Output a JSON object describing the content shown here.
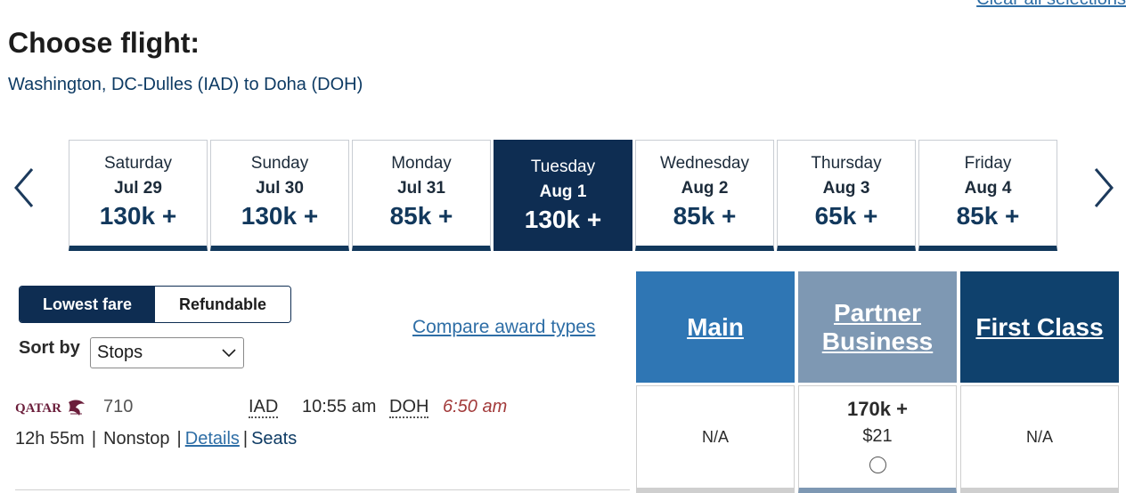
{
  "header": {
    "clear_all": "Clear all selections",
    "title": "Choose flight:",
    "route": "Washington, DC-Dulles (IAD) to Doha (DOH)"
  },
  "dates": [
    {
      "day": "Saturday",
      "date": "Jul 29",
      "price": "130k +"
    },
    {
      "day": "Sunday",
      "date": "Jul 30",
      "price": "130k +"
    },
    {
      "day": "Monday",
      "date": "Jul 31",
      "price": "85k +"
    },
    {
      "day": "Tuesday",
      "date": "Aug 1",
      "price": "130k +"
    },
    {
      "day": "Wednesday",
      "date": "Aug 2",
      "price": "85k +"
    },
    {
      "day": "Thursday",
      "date": "Aug 3",
      "price": "65k +"
    },
    {
      "day": "Friday",
      "date": "Aug 4",
      "price": "85k +"
    }
  ],
  "selected_date_index": 3,
  "fare_toggle": {
    "lowest": "Lowest fare",
    "refundable": "Refundable",
    "active": "lowest"
  },
  "sort": {
    "label": "Sort by",
    "value": "Stops"
  },
  "compare_link": "Compare award types",
  "cabins": {
    "main": {
      "line1": "Main",
      "line2": ""
    },
    "partner": {
      "line1": "Partner",
      "line2": "Business"
    },
    "first": {
      "line1": "First Class",
      "line2": ""
    }
  },
  "flight": {
    "airline": "QATAR",
    "number": "710",
    "dep_airport": "IAD",
    "dep_time": "10:55 am",
    "arr_airport": "DOH",
    "arr_time": "6:50 am",
    "duration": "12h 55m",
    "stops": "Nonstop",
    "details": "Details",
    "seats": "Seats",
    "fares": {
      "main": "N/A",
      "partner_miles": "170k +",
      "partner_tax": "$21",
      "first": "N/A"
    }
  },
  "colors": {
    "navy": "#0e2d52",
    "main_blue": "#2f76b4",
    "partner_gray": "#7e98b3",
    "first_navy": "#0f416d",
    "link_blue": "#2e6ea6",
    "arrival_red": "#a23a3a"
  },
  "icons": {
    "prev": "chevron-left-icon",
    "next": "chevron-right-icon",
    "select_arrow": "chevron-down-icon",
    "airline": "qatar-airways-logo"
  }
}
